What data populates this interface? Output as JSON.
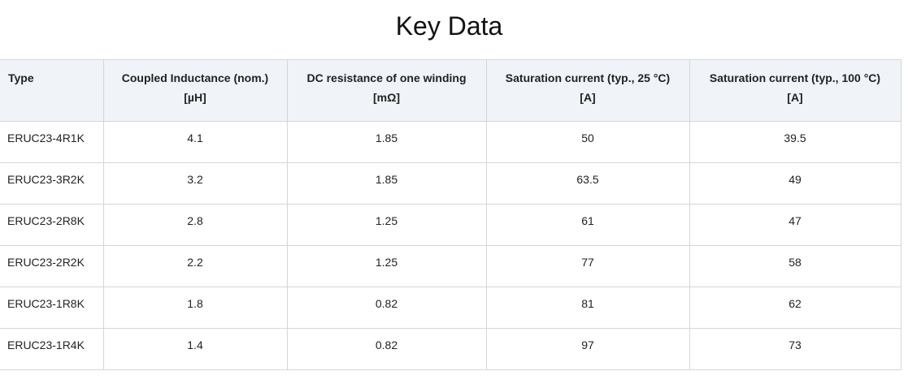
{
  "page": {
    "title": "Key Data"
  },
  "table": {
    "headers": [
      {
        "line1": "Type",
        "line2": ""
      },
      {
        "line1": "Coupled Inductance (nom.)",
        "line2": "[µH]"
      },
      {
        "line1": "DC resistance of one winding",
        "line2": "[mΩ]"
      },
      {
        "line1": "Saturation current (typ., 25 °C)",
        "line2": "[A]"
      },
      {
        "line1": "Saturation current (typ., 100 °C)",
        "line2": "[A]"
      }
    ],
    "rows": [
      {
        "type": "ERUC23-4R1K",
        "inductance": "4.1",
        "resistance": "1.85",
        "sat25": "50",
        "sat100": "39.5"
      },
      {
        "type": "ERUC23-3R2K",
        "inductance": "3.2",
        "resistance": "1.85",
        "sat25": "63.5",
        "sat100": "49"
      },
      {
        "type": "ERUC23-2R8K",
        "inductance": "2.8",
        "resistance": "1.25",
        "sat25": "61",
        "sat100": "47"
      },
      {
        "type": "ERUC23-2R2K",
        "inductance": "2.2",
        "resistance": "1.25",
        "sat25": "77",
        "sat100": "58"
      },
      {
        "type": "ERUC23-1R8K",
        "inductance": "1.8",
        "resistance": "0.82",
        "sat25": "81",
        "sat100": "62"
      },
      {
        "type": "ERUC23-1R4K",
        "inductance": "1.4",
        "resistance": "0.82",
        "sat25": "97",
        "sat100": "73"
      }
    ]
  }
}
